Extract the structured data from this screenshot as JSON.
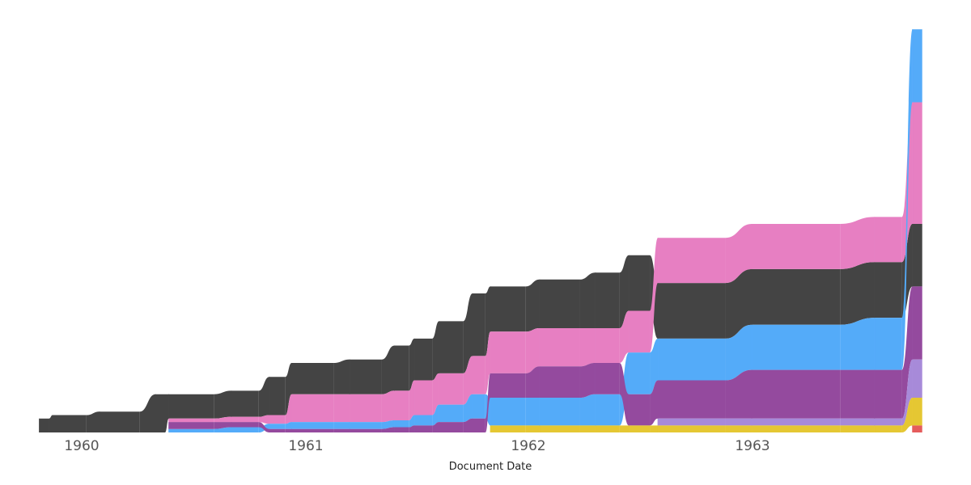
{
  "chart_data": {
    "type": "area",
    "subtype": "ribbon",
    "xlabel": "Document Date",
    "ylabel": "",
    "title": "",
    "x_ticks": [
      "1960",
      "1961",
      "1962",
      "1963"
    ],
    "ylim": [
      0,
      100
    ],
    "grid": false,
    "legend": "none",
    "series": [
      {
        "name": "dark",
        "color": "#444444"
      },
      {
        "name": "pink",
        "color": "#E77FC2"
      },
      {
        "name": "blue",
        "color": "#54ABF9"
      },
      {
        "name": "purple",
        "color": "#944A9E"
      },
      {
        "name": "lavender",
        "color": "#A78AD9"
      },
      {
        "name": "yellow",
        "color": "#E5C733"
      },
      {
        "name": "red",
        "color": "#E55C5C"
      }
    ],
    "ribbon_points": [
      {
        "x": 1959.81,
        "bands": [
          [
            "dark",
            0,
            4
          ]
        ]
      },
      {
        "x": 1959.87,
        "bands": [
          [
            "dark",
            0,
            5
          ]
        ]
      },
      {
        "x": 1960.08,
        "bands": [
          [
            "dark",
            0,
            6
          ]
        ]
      },
      {
        "x": 1960.33,
        "bands": [
          [
            "dark",
            0,
            11
          ]
        ]
      },
      {
        "x": 1960.39,
        "bands": [
          [
            "blue",
            0,
            1
          ],
          [
            "purple",
            1,
            3
          ],
          [
            "pink",
            3,
            4
          ],
          [
            "dark",
            4,
            11
          ]
        ]
      },
      {
        "x": 1960.67,
        "bands": [
          [
            "blue",
            0,
            1.5
          ],
          [
            "purple",
            1.5,
            3
          ],
          [
            "pink",
            3,
            4.5
          ],
          [
            "dark",
            4.5,
            12
          ]
        ]
      },
      {
        "x": 1960.84,
        "bands": [
          [
            "purple",
            0,
            1
          ],
          [
            "blue",
            1,
            2.5
          ],
          [
            "pink",
            2.5,
            5
          ],
          [
            "dark",
            5,
            16
          ]
        ]
      },
      {
        "x": 1960.94,
        "bands": [
          [
            "purple",
            0,
            1
          ],
          [
            "blue",
            1,
            3
          ],
          [
            "pink",
            3,
            11
          ],
          [
            "dark",
            11,
            20
          ]
        ]
      },
      {
        "x": 1961.2,
        "bands": [
          [
            "purple",
            0,
            1
          ],
          [
            "blue",
            1,
            3
          ],
          [
            "pink",
            3,
            11
          ],
          [
            "dark",
            11,
            21
          ]
        ]
      },
      {
        "x": 1961.4,
        "bands": [
          [
            "purple",
            0,
            1.5
          ],
          [
            "blue",
            1.5,
            3.5
          ],
          [
            "pink",
            3.5,
            12
          ],
          [
            "dark",
            12,
            25
          ]
        ]
      },
      {
        "x": 1961.49,
        "bands": [
          [
            "purple",
            0,
            2
          ],
          [
            "blue",
            2,
            5
          ],
          [
            "pink",
            5,
            15
          ],
          [
            "dark",
            15,
            27
          ]
        ]
      },
      {
        "x": 1961.6,
        "bands": [
          [
            "purple",
            0,
            3
          ],
          [
            "blue",
            3,
            8
          ],
          [
            "pink",
            8,
            17
          ],
          [
            "dark",
            17,
            32
          ]
        ]
      },
      {
        "x": 1961.75,
        "bands": [
          [
            "purple",
            0,
            4
          ],
          [
            "blue",
            4,
            11
          ],
          [
            "pink",
            11,
            22
          ],
          [
            "dark",
            22,
            40
          ]
        ]
      },
      {
        "x": 1961.83,
        "bands": [
          [
            "yellow",
            0,
            2
          ],
          [
            "blue",
            2,
            10
          ],
          [
            "purple",
            10,
            17
          ],
          [
            "pink",
            17,
            29
          ],
          [
            "dark",
            29,
            42
          ]
        ]
      },
      {
        "x": 1962.05,
        "bands": [
          [
            "yellow",
            0,
            2
          ],
          [
            "blue",
            2,
            10
          ],
          [
            "purple",
            10,
            19
          ],
          [
            "pink",
            19,
            30
          ],
          [
            "dark",
            30,
            44
          ]
        ]
      },
      {
        "x": 1962.3,
        "bands": [
          [
            "yellow",
            0,
            2
          ],
          [
            "blue",
            2,
            11
          ],
          [
            "purple",
            11,
            20
          ],
          [
            "pink",
            20,
            30
          ],
          [
            "dark",
            30,
            46
          ]
        ]
      },
      {
        "x": 1962.45,
        "bands": [
          [
            "yellow",
            0,
            2
          ],
          [
            "purple",
            2,
            11
          ],
          [
            "blue",
            11,
            23
          ],
          [
            "pink",
            23,
            35
          ],
          [
            "dark",
            35,
            51
          ]
        ]
      },
      {
        "x": 1962.58,
        "bands": [
          [
            "yellow",
            0,
            2
          ],
          [
            "lavender",
            2,
            4
          ],
          [
            "purple",
            4,
            15
          ],
          [
            "blue",
            15,
            27
          ],
          [
            "dark",
            27,
            43
          ],
          [
            "pink",
            43,
            56
          ]
        ]
      },
      {
        "x": 1963.0,
        "bands": [
          [
            "yellow",
            0,
            2
          ],
          [
            "lavender",
            2,
            4
          ],
          [
            "purple",
            4,
            18
          ],
          [
            "blue",
            18,
            31
          ],
          [
            "dark",
            31,
            47
          ],
          [
            "pink",
            47,
            60
          ]
        ]
      },
      {
        "x": 1963.55,
        "bands": [
          [
            "yellow",
            0,
            2
          ],
          [
            "lavender",
            2,
            4
          ],
          [
            "purple",
            4,
            18
          ],
          [
            "blue",
            18,
            33
          ],
          [
            "dark",
            33,
            49
          ],
          [
            "pink",
            49,
            62
          ]
        ]
      },
      {
        "x": 1963.72,
        "bands": [
          [
            "red",
            0,
            2
          ],
          [
            "yellow",
            2,
            10
          ],
          [
            "lavender",
            10,
            21
          ],
          [
            "purple",
            21,
            42
          ],
          [
            "dark",
            42,
            60
          ],
          [
            "pink",
            60,
            95
          ],
          [
            "blue",
            95,
            116
          ]
        ]
      }
    ]
  }
}
